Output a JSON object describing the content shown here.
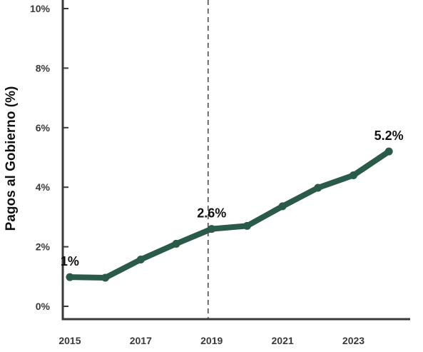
{
  "chart_data": {
    "type": "line",
    "title": "",
    "xlabel": "",
    "ylabel": "Pagos al Gobierno (%)",
    "x": [
      2015,
      2016,
      2017,
      2018,
      2019,
      2020,
      2021,
      2022,
      2023,
      2024
    ],
    "series": [
      {
        "values": [
          0.98,
          0.96,
          1.57,
          2.1,
          2.6,
          2.7,
          3.36,
          3.98,
          4.4,
          5.2
        ]
      }
    ],
    "xticks": [
      "2015",
      "2017",
      "2019",
      "2021",
      "2023"
    ],
    "xtick_values": [
      2015,
      2017,
      2019,
      2021,
      2023
    ],
    "yticks": [
      "0%",
      "2%",
      "4%",
      "6%",
      "8%",
      "10%"
    ],
    "ytick_values": [
      0,
      2,
      4,
      6,
      8,
      10
    ],
    "xlim": [
      2014.8,
      2024.6
    ],
    "ylim": [
      0,
      10
    ],
    "grid": false,
    "reference_line_x": 2018.9,
    "annotations": [
      {
        "text": "1%",
        "x": 2015,
        "y": 0.98
      },
      {
        "text": "2.6%",
        "x": 2019,
        "y": 2.6
      },
      {
        "text": "5.2%",
        "x": 2024,
        "y": 5.2
      }
    ],
    "colors": {
      "line": "#2a5a48",
      "axis": "#3a3a3a",
      "reference": "#444444"
    }
  }
}
